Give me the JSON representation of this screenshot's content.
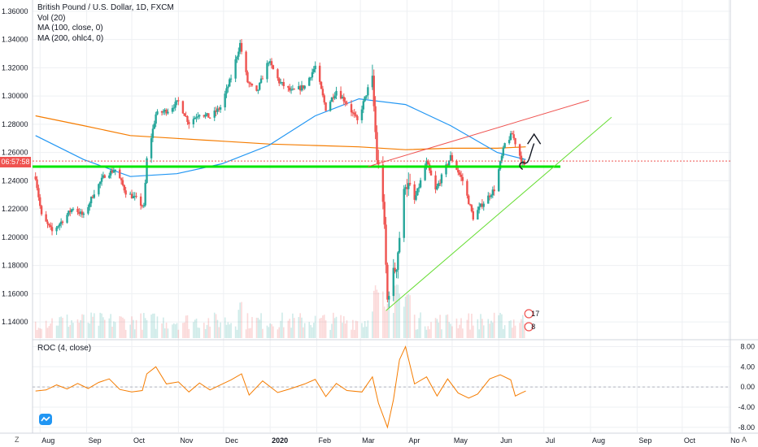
{
  "header": {
    "title": "British Pound / U.S. Dollar, 1D, FXCM",
    "indicators": [
      "Vol (20)",
      "MA (100, close, 0)",
      "MA (200, ohlc4, 0)"
    ]
  },
  "price_badge": "06:57:58",
  "roc_panel": {
    "label": "ROC (4, close)"
  },
  "corner_buttons": {
    "left": "Z",
    "right": "A"
  },
  "colors": {
    "up": "#26a69a",
    "down": "#ef5350",
    "ma100": "#2196f3",
    "ma200": "#f57c00",
    "roc": "#f57c00",
    "support": "#00e600",
    "trend_red": "#ef5350",
    "trend_green": "#66dd33"
  },
  "chart_data": [
    {
      "type": "candlestick",
      "title": "British Pound / U.S. Dollar, 1D, FXCM",
      "ylim": [
        1.128,
        1.368
      ],
      "y_ticks": [
        "1.36000",
        "1.34000",
        "1.32000",
        "1.30000",
        "1.28000",
        "1.26000",
        "1.24000",
        "1.22000",
        "1.20000",
        "1.18000",
        "1.16000",
        "1.14000"
      ],
      "x_ticks": [
        "Aug",
        "Sep",
        "Oct",
        "Nov",
        "Dec",
        "2020",
        "Feb",
        "Mar",
        "Apr",
        "May",
        "Jun",
        "Jul",
        "Aug",
        "Sep",
        "Oct",
        "No"
      ],
      "price_path": [
        [
          "2019-07-29",
          1.243
        ],
        [
          "2019-08-02",
          1.215
        ],
        [
          "2019-08-09",
          1.204
        ],
        [
          "2019-08-16",
          1.212
        ],
        [
          "2019-08-23",
          1.221
        ],
        [
          "2019-08-30",
          1.215
        ],
        [
          "2019-09-06",
          1.232
        ],
        [
          "2019-09-13",
          1.244
        ],
        [
          "2019-09-20",
          1.248
        ],
        [
          "2019-09-27",
          1.232
        ],
        [
          "2019-10-04",
          1.227
        ],
        [
          "2019-10-09",
          1.221
        ],
        [
          "2019-10-11",
          1.255
        ],
        [
          "2019-10-17",
          1.287
        ],
        [
          "2019-10-25",
          1.29
        ],
        [
          "2019-11-01",
          1.296
        ],
        [
          "2019-11-08",
          1.281
        ],
        [
          "2019-11-15",
          1.288
        ],
        [
          "2019-11-22",
          1.285
        ],
        [
          "2019-11-29",
          1.292
        ],
        [
          "2019-12-06",
          1.313
        ],
        [
          "2019-12-12",
          1.337
        ],
        [
          "2019-12-17",
          1.31
        ],
        [
          "2019-12-23",
          1.302
        ],
        [
          "2019-12-31",
          1.325
        ],
        [
          "2020-01-07",
          1.31
        ],
        [
          "2020-01-15",
          1.303
        ],
        [
          "2020-01-24",
          1.307
        ],
        [
          "2020-01-31",
          1.321
        ],
        [
          "2020-02-07",
          1.291
        ],
        [
          "2020-02-14",
          1.304
        ],
        [
          "2020-02-21",
          1.295
        ],
        [
          "2020-02-28",
          1.282
        ],
        [
          "2020-03-06",
          1.305
        ],
        [
          "2020-03-09",
          1.31
        ],
        [
          "2020-03-12",
          1.256
        ],
        [
          "2020-03-16",
          1.228
        ],
        [
          "2020-03-19",
          1.155
        ],
        [
          "2020-03-20",
          1.163
        ],
        [
          "2020-03-25",
          1.181
        ],
        [
          "2020-03-31",
          1.24
        ],
        [
          "2020-04-06",
          1.226
        ],
        [
          "2020-04-14",
          1.253
        ],
        [
          "2020-04-20",
          1.233
        ],
        [
          "2020-04-30",
          1.257
        ],
        [
          "2020-05-08",
          1.24
        ],
        [
          "2020-05-15",
          1.214
        ],
        [
          "2020-05-20",
          1.222
        ],
        [
          "2020-05-29",
          1.234
        ],
        [
          "2020-06-05",
          1.266
        ],
        [
          "2020-06-10",
          1.273
        ],
        [
          "2020-06-16",
          1.255
        ],
        [
          "2020-06-18",
          1.25
        ]
      ],
      "ma100": [
        [
          "2019-07-29",
          1.272
        ],
        [
          "2019-08-30",
          1.255
        ],
        [
          "2019-09-30",
          1.243
        ],
        [
          "2019-10-31",
          1.245
        ],
        [
          "2019-11-30",
          1.252
        ],
        [
          "2019-12-31",
          1.265
        ],
        [
          "2020-01-31",
          1.286
        ],
        [
          "2020-02-29",
          1.298
        ],
        [
          "2020-03-31",
          1.294
        ],
        [
          "2020-04-30",
          1.279
        ],
        [
          "2020-05-31",
          1.26
        ],
        [
          "2020-06-19",
          1.255
        ]
      ],
      "ma200": [
        [
          "2019-07-29",
          1.286
        ],
        [
          "2019-08-30",
          1.279
        ],
        [
          "2019-09-30",
          1.272
        ],
        [
          "2019-10-31",
          1.27
        ],
        [
          "2019-11-30",
          1.268
        ],
        [
          "2019-12-31",
          1.266
        ],
        [
          "2020-01-31",
          1.265
        ],
        [
          "2020-02-29",
          1.264
        ],
        [
          "2020-03-31",
          1.262
        ],
        [
          "2020-04-30",
          1.263
        ],
        [
          "2020-05-31",
          1.263
        ],
        [
          "2020-06-19",
          1.264
        ]
      ],
      "annotations": {
        "support_level": 1.25,
        "resistance_trendline": [
          [
            "2020-03-06",
            1.25
          ],
          [
            "2020-07-31",
            1.297
          ]
        ],
        "rising_trendline": [
          [
            "2020-03-18",
            1.148
          ],
          [
            "2020-08-15",
            1.285
          ]
        ],
        "current_price_line": 1.254
      }
    },
    {
      "type": "line",
      "title": "ROC (4, close)",
      "ylim": [
        -9,
        9.2
      ],
      "y_ticks": [
        "8.00",
        "4.00",
        "0.00",
        "-4.00",
        "-8.00"
      ],
      "series": [
        {
          "points": [
            [
              "2019-07-29",
              -0.8
            ],
            [
              "2019-08-05",
              -0.6
            ],
            [
              "2019-08-12",
              0.4
            ],
            [
              "2019-08-19",
              -0.4
            ],
            [
              "2019-08-26",
              0.7
            ],
            [
              "2019-09-02",
              -0.3
            ],
            [
              "2019-09-09",
              0.9
            ],
            [
              "2019-09-16",
              1.6
            ],
            [
              "2019-09-23",
              -0.5
            ],
            [
              "2019-10-01",
              -1.0
            ],
            [
              "2019-10-08",
              -0.7
            ],
            [
              "2019-10-11",
              2.6
            ],
            [
              "2019-10-17",
              4.0
            ],
            [
              "2019-10-24",
              0.6
            ],
            [
              "2019-11-01",
              1.0
            ],
            [
              "2019-11-08",
              -1.0
            ],
            [
              "2019-11-15",
              0.8
            ],
            [
              "2019-11-22",
              -0.6
            ],
            [
              "2019-11-29",
              0.4
            ],
            [
              "2019-12-06",
              1.4
            ],
            [
              "2019-12-13",
              2.6
            ],
            [
              "2019-12-18",
              -1.6
            ],
            [
              "2019-12-27",
              1.2
            ],
            [
              "2020-01-06",
              -1.1
            ],
            [
              "2020-01-14",
              -0.4
            ],
            [
              "2020-01-24",
              0.6
            ],
            [
              "2020-01-31",
              1.5
            ],
            [
              "2020-02-07",
              -1.9
            ],
            [
              "2020-02-14",
              0.7
            ],
            [
              "2020-02-21",
              -0.7
            ],
            [
              "2020-03-02",
              -1.0
            ],
            [
              "2020-03-09",
              2.0
            ],
            [
              "2020-03-13",
              -3.2
            ],
            [
              "2020-03-19",
              -8.0
            ],
            [
              "2020-03-23",
              -2.5
            ],
            [
              "2020-03-27",
              5.4
            ],
            [
              "2020-03-31",
              8.0
            ],
            [
              "2020-04-06",
              0.6
            ],
            [
              "2020-04-14",
              2.0
            ],
            [
              "2020-04-21",
              -1.8
            ],
            [
              "2020-04-28",
              1.6
            ],
            [
              "2020-05-05",
              -1.2
            ],
            [
              "2020-05-12",
              -2.2
            ],
            [
              "2020-05-18",
              -1.4
            ],
            [
              "2020-05-26",
              1.6
            ],
            [
              "2020-06-02",
              2.4
            ],
            [
              "2020-06-09",
              1.4
            ],
            [
              "2020-06-12",
              -1.8
            ],
            [
              "2020-06-16",
              -1.2
            ],
            [
              "2020-06-19",
              -0.8
            ]
          ]
        }
      ]
    }
  ]
}
